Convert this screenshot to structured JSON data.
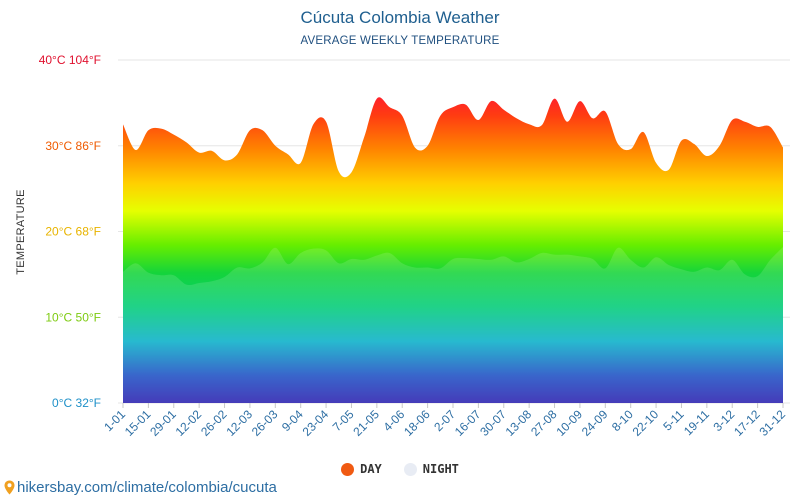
{
  "chart_data": {
    "type": "area",
    "title": "Cúcuta Colombia Weather",
    "subtitle": "AVERAGE WEEKLY TEMPERATURE",
    "ylabel": "TEMPERATURE",
    "ylim": [
      0,
      40
    ],
    "y_ticks": [
      {
        "value": 0,
        "label": "0°C 32°F",
        "color": "#1e90c8"
      },
      {
        "value": 10,
        "label": "10°C 50°F",
        "color": "#7ecb12"
      },
      {
        "value": 20,
        "label": "20°C 68°F",
        "color": "#e8b400"
      },
      {
        "value": 30,
        "label": "30°C 86°F",
        "color": "#ef5a00"
      },
      {
        "value": 40,
        "label": "40°C 104°F",
        "color": "#e0102e"
      }
    ],
    "x_tick_labels": [
      "1-01",
      "15-01",
      "29-01",
      "12-02",
      "26-02",
      "12-03",
      "26-03",
      "9-04",
      "23-04",
      "7-05",
      "21-05",
      "4-06",
      "18-06",
      "2-07",
      "16-07",
      "30-07",
      "13-08",
      "27-08",
      "10-09",
      "24-09",
      "8-10",
      "22-10",
      "5-11",
      "19-11",
      "3-12",
      "17-12",
      "31-12"
    ],
    "series": [
      {
        "name": "DAY",
        "color": "#f05a12",
        "values": [
          32.5,
          29.5,
          31.8,
          32.0,
          31.3,
          30.4,
          29.2,
          29.4,
          28.3,
          29.0,
          31.8,
          31.8,
          30.0,
          29.0,
          28.0,
          32.5,
          32.8,
          27.0,
          26.9,
          31.0,
          35.5,
          34.5,
          33.5,
          29.8,
          30.0,
          33.5,
          34.5,
          34.8,
          33.0,
          35.2,
          34.2,
          33.2,
          32.5,
          32.4,
          35.5,
          32.8,
          35.2,
          33.2,
          34.0,
          30.2,
          29.6,
          31.6,
          28.0,
          27.2,
          30.6,
          30.2,
          28.8,
          30.0,
          33.0,
          32.8,
          32.2,
          32.2,
          29.8
        ]
      },
      {
        "name": "NIGHT",
        "color": "#e8ecf4",
        "values": [
          15.3,
          16.3,
          15.2,
          14.9,
          14.9,
          13.8,
          14.0,
          14.2,
          14.7,
          15.8,
          15.7,
          16.4,
          18.1,
          16.2,
          17.5,
          18.0,
          17.8,
          16.3,
          16.8,
          16.7,
          17.2,
          17.5,
          16.3,
          15.8,
          15.8,
          15.7,
          16.8,
          16.9,
          16.8,
          16.7,
          17.1,
          16.4,
          16.8,
          17.5,
          17.3,
          17.3,
          17.1,
          16.8,
          15.7,
          18.1,
          16.7,
          15.8,
          17.0,
          16.1,
          15.6,
          15.3,
          15.8,
          15.5,
          16.7,
          15.0,
          14.8,
          16.7,
          18.2
        ]
      }
    ],
    "grid": true,
    "legend_position": "bottom-center"
  },
  "footer": {
    "text": "hikersbay.com/climate/colombia/cucuta"
  }
}
